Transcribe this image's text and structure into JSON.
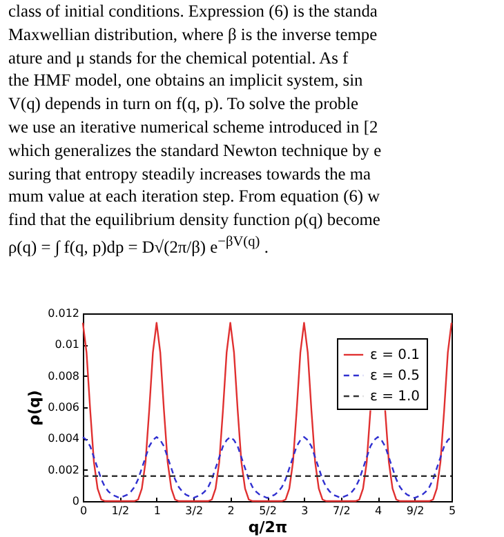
{
  "chart_data": {
    "type": "line",
    "xlabel": "q/2π",
    "ylabel": "ρ(q)",
    "annotations": [
      "class of initial conditions. Expression (6) is the standa",
      "Maxwellian distribution, where β is the inverse tempe",
      "ature and μ stands for the chemical potential. As f",
      "the HMF model, one obtains an implicit system, sin",
      "V(q) depends in turn on f(q, p). To solve the proble",
      "we use an iterative numerical scheme introduced in [2",
      "which generalizes the standard Newton technique by e",
      "suring that entropy steadily increases towards the ma",
      "mum value at each iteration step. From equation (6) w",
      "find that the equilibrium density function ρ(q) become",
      "ρ(q) = ∫ f(q, p)dp = D√(2π/β) e$^{−βV(q)}$ ."
    ],
    "x": [
      0,
      0.05,
      0.1,
      0.15,
      0.2,
      0.25,
      0.3,
      0.35,
      0.4,
      0.45,
      0.5,
      0.55,
      0.6,
      0.65,
      0.7,
      0.75,
      0.8,
      0.85,
      0.9,
      0.95,
      1,
      1.05,
      1.1,
      1.15,
      1.2,
      1.25,
      1.3,
      1.35,
      1.4,
      1.45,
      1.5,
      1.55,
      1.6,
      1.65,
      1.7,
      1.75,
      1.8,
      1.85,
      1.9,
      1.95,
      2,
      2.05,
      2.1,
      2.15,
      2.2,
      2.25,
      2.3,
      2.35,
      2.4,
      2.45,
      2.5,
      2.55,
      2.6,
      2.65,
      2.7,
      2.75,
      2.8,
      2.85,
      2.9,
      2.95,
      3,
      3.05,
      3.1,
      3.15,
      3.2,
      3.25,
      3.3,
      3.35,
      3.4,
      3.45,
      3.5,
      3.55,
      3.6,
      3.65,
      3.7,
      3.75,
      3.8,
      3.85,
      3.9,
      3.95,
      4,
      4.05,
      4.1,
      4.15,
      4.2,
      4.25,
      4.3,
      4.35,
      4.4,
      4.45,
      4.5,
      4.55,
      4.6,
      4.65,
      4.7,
      4.75,
      4.8,
      4.85,
      4.9,
      4.95,
      5
    ],
    "series": [
      {
        "name": "ε = 0.1",
        "color": "#e03030",
        "line_style": "solid",
        "values": [
          0.0114,
          0.0095,
          0.0058,
          0.0025,
          0.0008,
          0.0001,
          0,
          0,
          0,
          0,
          0,
          0,
          0,
          0,
          0,
          0.0001,
          0.0008,
          0.0025,
          0.0058,
          0.0095,
          0.0114,
          0.0095,
          0.0058,
          0.0025,
          0.0008,
          0.0001,
          0,
          0,
          0,
          0,
          0,
          0,
          0,
          0,
          0,
          0.0001,
          0.0008,
          0.0025,
          0.0058,
          0.0095,
          0.0114,
          0.0095,
          0.0058,
          0.0025,
          0.0008,
          0.0001,
          0,
          0,
          0,
          0,
          0,
          0,
          0,
          0,
          0,
          0.0001,
          0.0008,
          0.0025,
          0.0058,
          0.0095,
          0.0114,
          0.0095,
          0.0058,
          0.0025,
          0.0008,
          0.0001,
          0,
          0,
          0,
          0,
          0,
          0,
          0,
          0,
          0,
          0.0001,
          0.0008,
          0.0025,
          0.0058,
          null,
          null,
          null,
          0.0058,
          0.0025,
          0.0008,
          0.0001,
          0,
          0,
          0,
          0,
          0,
          0,
          0,
          0,
          0,
          0.0001,
          0.0008,
          0.0025,
          0.0058,
          0.0095,
          0.0114
        ]
      },
      {
        "name": "ε = 0.5",
        "color": "#3030d0",
        "line_style": "dashed",
        "values": [
          0.0041,
          0.0039,
          0.0035,
          0.0028,
          0.0021,
          0.0014,
          0.0009,
          0.0006,
          0.0004,
          0.0003,
          0.0002,
          0.0003,
          0.0004,
          0.0006,
          0.0009,
          0.0014,
          0.0021,
          0.0028,
          0.0035,
          0.0039,
          0.0041,
          0.0039,
          0.0035,
          0.0028,
          0.0021,
          0.0014,
          0.0009,
          0.0006,
          0.0004,
          0.0003,
          0.0002,
          0.0003,
          0.0004,
          0.0006,
          0.0009,
          0.0014,
          0.0021,
          0.0028,
          0.0035,
          0.0039,
          0.0041,
          0.0039,
          0.0035,
          0.0028,
          0.0021,
          0.0014,
          0.0009,
          0.0006,
          0.0004,
          0.0003,
          0.0002,
          0.0003,
          0.0004,
          0.0006,
          0.0009,
          0.0014,
          0.0021,
          0.0028,
          0.0035,
          0.0039,
          0.0041,
          0.0039,
          0.0035,
          0.0028,
          0.0021,
          0.0014,
          0.0009,
          0.0006,
          0.0004,
          0.0003,
          0.0002,
          0.0003,
          0.0004,
          0.0006,
          0.0009,
          0.0014,
          0.0021,
          0.0028,
          0.0035,
          0.0039,
          0.0041,
          0.0039,
          0.0035,
          0.0028,
          0.0021,
          0.0014,
          0.0009,
          0.0006,
          0.0004,
          0.0003,
          0.0002,
          0.0003,
          0.0004,
          0.0006,
          0.0009,
          0.0014,
          0.0021,
          0.0028,
          0.0035,
          0.0039,
          0.0041
        ]
      },
      {
        "name": "ε = 1.0",
        "color": "#333333",
        "line_style": "dashed",
        "x": [
          0,
          5
        ],
        "values": [
          0.0016,
          0.0016
        ]
      }
    ],
    "xlim": [
      0,
      5
    ],
    "xticks": [
      0,
      {
        "value": 0.5,
        "label": "1/2"
      },
      1,
      {
        "value": 1.5,
        "label": "3/2"
      },
      2,
      {
        "value": 2.5,
        "label": "5/2"
      },
      3,
      {
        "value": 3.5,
        "label": "7/2"
      },
      4,
      {
        "value": 4.5,
        "label": "9/2"
      },
      5
    ],
    "ylim": [
      0,
      0.012
    ],
    "yticks": [
      0,
      0.002,
      0.004,
      0.006,
      0.008,
      {
        "value": 0.01,
        "label": "0.01"
      },
      0.012
    ],
    "legend": "top right",
    "grid": false
  }
}
